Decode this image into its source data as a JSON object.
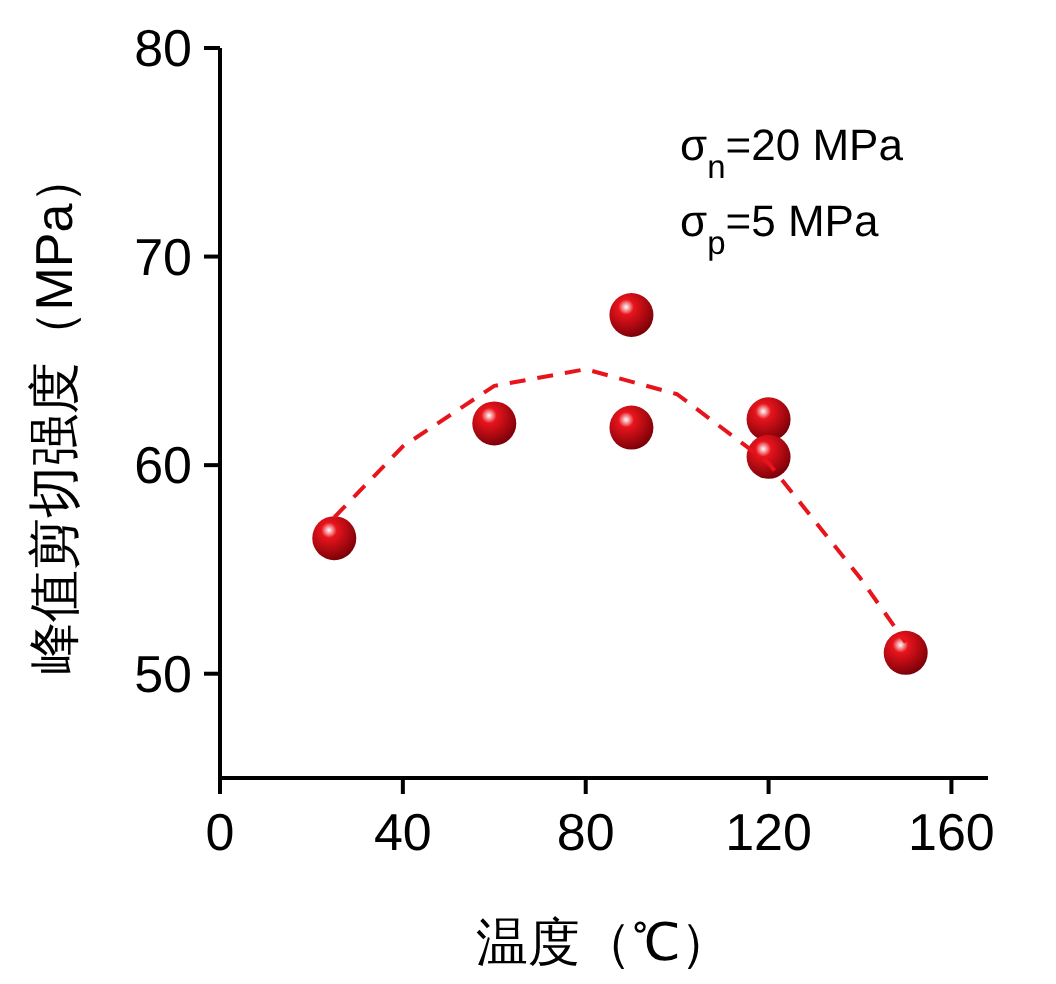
{
  "chart_data": {
    "type": "scatter",
    "xlabel": "温度（℃）",
    "ylabel": "峰值剪切强度（MPa）",
    "xlim": [
      0,
      168
    ],
    "ylim": [
      45,
      80
    ],
    "xticks": [
      0,
      40,
      80,
      120,
      160
    ],
    "yticks": [
      50,
      60,
      70,
      80
    ],
    "marker": "circle",
    "annotations": [
      "σ$_{n}$=20 MPa",
      "σ$_{p}$=5 MPa"
    ],
    "series": [
      {
        "type": "scatter",
        "color": "#e8141c",
        "x": [
          25,
          60,
          90,
          90,
          120,
          120,
          150
        ],
        "values": [
          56.5,
          62,
          67.2,
          61.8,
          62.2,
          60.4,
          51
        ]
      },
      {
        "type": "line",
        "color": "#e8141c",
        "line_style": "dashed",
        "marker": "none",
        "x": [
          25,
          40,
          60,
          80,
          100,
          120,
          140,
          150
        ],
        "values": [
          57.5,
          60.9,
          63.8,
          64.6,
          63.4,
          60.1,
          54.6,
          51.5
        ]
      }
    ]
  }
}
